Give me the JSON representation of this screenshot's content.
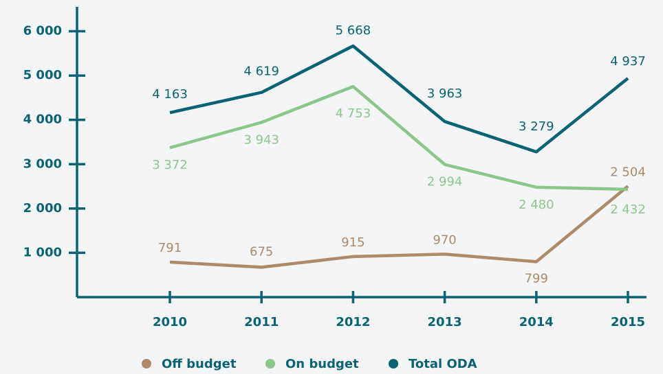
{
  "chart_data": {
    "type": "line",
    "categories": [
      "2010",
      "2011",
      "2012",
      "2013",
      "2014",
      "2015"
    ],
    "series": [
      {
        "name": "Off budget",
        "color": "#b08a68",
        "values": [
          791,
          675,
          915,
          970,
          799,
          2504
        ],
        "value_labels": [
          "791",
          "675",
          "915",
          "970",
          "799",
          "2 504"
        ]
      },
      {
        "name": "On budget",
        "color": "#8cc78a",
        "values": [
          3372,
          3943,
          4753,
          2994,
          2480,
          2432
        ],
        "value_labels": [
          "3 372",
          "3 943",
          "4 753",
          "2 994",
          "2 480",
          "2 432"
        ]
      },
      {
        "name": "Total ODA",
        "color": "#0b6274",
        "values": [
          4163,
          4619,
          5668,
          3963,
          3279,
          4937
        ],
        "value_labels": [
          "4 163",
          "4 619",
          "5 668",
          "3 963",
          "3 279",
          "4 937"
        ]
      }
    ],
    "ylim": [
      0,
      6550
    ],
    "yticks": [
      {
        "value": 1000,
        "label": "1 000"
      },
      {
        "value": 2000,
        "label": "2 000"
      },
      {
        "value": 3000,
        "label": "3 000"
      },
      {
        "value": 4000,
        "label": "4 000"
      },
      {
        "value": 5000,
        "label": "5 000"
      },
      {
        "value": 6000,
        "label": "6 000"
      }
    ],
    "axis_color": "#0b6274",
    "legend": "bottom"
  }
}
